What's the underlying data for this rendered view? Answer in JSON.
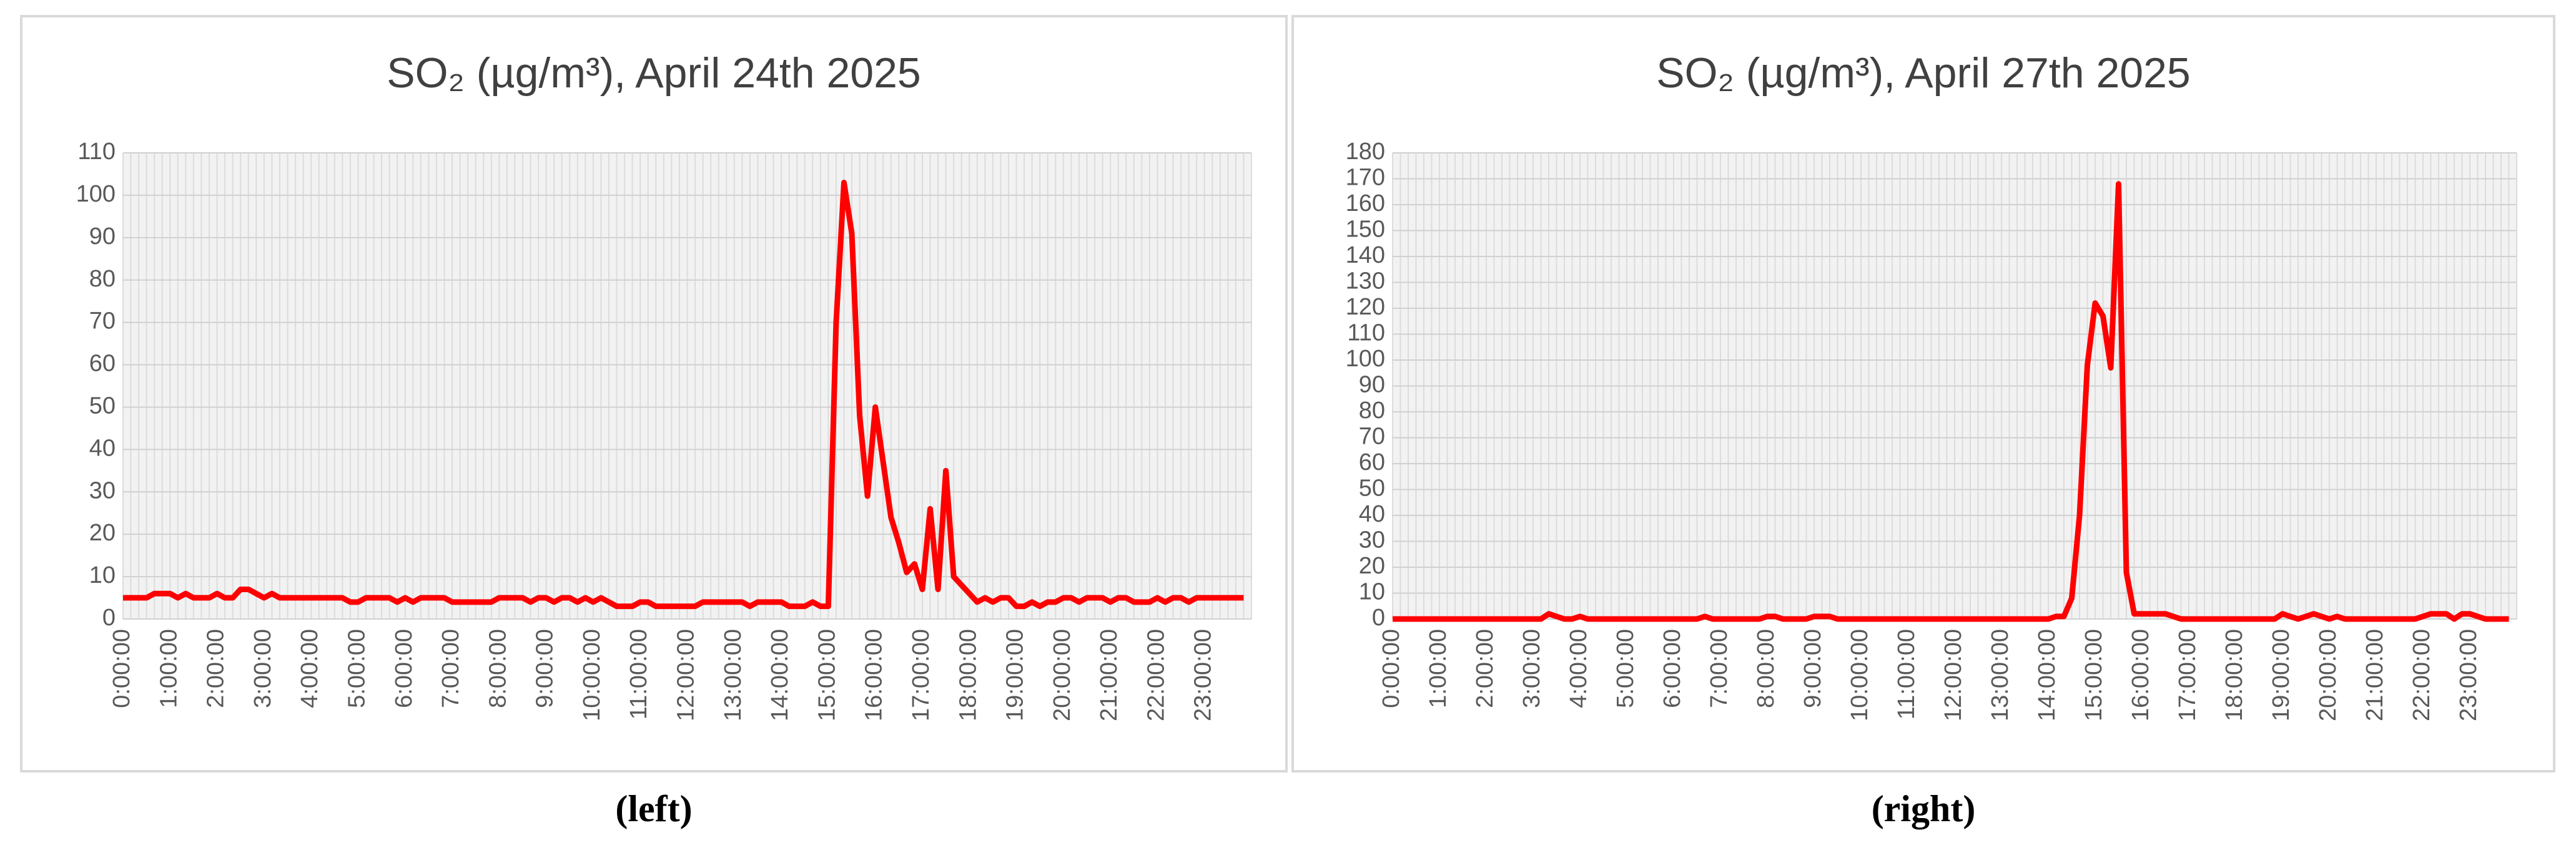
{
  "chart_data": [
    {
      "type": "line",
      "title": "SO₂ (µg/m³), April 24th 2025",
      "caption": "(left)",
      "categories": [
        "0:00:00",
        null,
        null,
        null,
        null,
        null,
        "1:00:00",
        null,
        null,
        null,
        null,
        null,
        "2:00:00",
        null,
        null,
        null,
        null,
        null,
        "3:00:00",
        null,
        null,
        null,
        null,
        null,
        "4:00:00",
        null,
        null,
        null,
        null,
        null,
        "5:00:00",
        null,
        null,
        null,
        null,
        null,
        "6:00:00",
        null,
        null,
        null,
        null,
        null,
        "7:00:00",
        null,
        null,
        null,
        null,
        null,
        "8:00:00",
        null,
        null,
        null,
        null,
        null,
        "9:00:00",
        null,
        null,
        null,
        null,
        null,
        "10:00:00",
        null,
        null,
        null,
        null,
        null,
        "11:00:00",
        null,
        null,
        null,
        null,
        null,
        "12:00:00",
        null,
        null,
        null,
        null,
        null,
        "13:00:00",
        null,
        null,
        null,
        null,
        null,
        "14:00:00",
        null,
        null,
        null,
        null,
        null,
        "15:00:00",
        null,
        null,
        null,
        null,
        null,
        "16:00:00",
        null,
        null,
        null,
        null,
        null,
        "17:00:00",
        null,
        null,
        null,
        null,
        null,
        "18:00:00",
        null,
        null,
        null,
        null,
        null,
        "19:00:00",
        null,
        null,
        null,
        null,
        null,
        "20:00:00",
        null,
        null,
        null,
        null,
        null,
        "21:00:00",
        null,
        null,
        null,
        null,
        null,
        "22:00:00",
        null,
        null,
        null,
        null,
        null,
        "23:00:00",
        null,
        null,
        null,
        null,
        null
      ],
      "values": [
        5,
        5,
        5,
        5,
        6,
        6,
        6,
        5,
        6,
        5,
        5,
        5,
        6,
        5,
        5,
        7,
        7,
        6,
        5,
        6,
        5,
        5,
        5,
        5,
        5,
        5,
        5,
        5,
        5,
        4,
        4,
        5,
        5,
        5,
        5,
        4,
        5,
        4,
        5,
        5,
        5,
        5,
        4,
        4,
        4,
        4,
        4,
        4,
        5,
        5,
        5,
        5,
        4,
        5,
        5,
        4,
        5,
        5,
        4,
        5,
        4,
        5,
        4,
        3,
        3,
        3,
        4,
        4,
        3,
        3,
        3,
        3,
        3,
        3,
        4,
        4,
        4,
        4,
        4,
        4,
        3,
        4,
        4,
        4,
        4,
        3,
        3,
        3,
        4,
        3,
        3,
        70,
        103,
        91,
        48,
        29,
        50,
        37,
        24,
        18,
        11,
        13,
        7,
        26,
        7,
        35,
        10,
        8,
        6,
        4,
        5,
        4,
        5,
        5,
        3,
        3,
        4,
        3,
        4,
        4,
        5,
        5,
        4,
        5,
        5,
        5,
        4,
        5,
        5,
        4,
        4,
        4,
        5,
        4,
        5,
        5,
        4,
        5,
        5,
        5,
        5,
        5,
        5,
        5
      ],
      "color": "#ff0000",
      "ylim": [
        0,
        110
      ],
      "yticks": [
        0,
        10,
        20,
        30,
        40,
        50,
        60,
        70,
        80,
        90,
        100,
        110
      ],
      "grid": true
    },
    {
      "type": "line",
      "title": "SO₂ (µg/m³), April 27th 2025",
      "caption": "(right)",
      "categories": [
        "0:00:00",
        null,
        null,
        null,
        null,
        null,
        "1:00:00",
        null,
        null,
        null,
        null,
        null,
        "2:00:00",
        null,
        null,
        null,
        null,
        null,
        "3:00:00",
        null,
        null,
        null,
        null,
        null,
        "4:00:00",
        null,
        null,
        null,
        null,
        null,
        "5:00:00",
        null,
        null,
        null,
        null,
        null,
        "6:00:00",
        null,
        null,
        null,
        null,
        null,
        "7:00:00",
        null,
        null,
        null,
        null,
        null,
        "8:00:00",
        null,
        null,
        null,
        null,
        null,
        "9:00:00",
        null,
        null,
        null,
        null,
        null,
        "10:00:00",
        null,
        null,
        null,
        null,
        null,
        "11:00:00",
        null,
        null,
        null,
        null,
        null,
        "12:00:00",
        null,
        null,
        null,
        null,
        null,
        "13:00:00",
        null,
        null,
        null,
        null,
        null,
        "14:00:00",
        null,
        null,
        null,
        null,
        null,
        "15:00:00",
        null,
        null,
        null,
        null,
        null,
        "16:00:00",
        null,
        null,
        null,
        null,
        null,
        "17:00:00",
        null,
        null,
        null,
        null,
        null,
        "18:00:00",
        null,
        null,
        null,
        null,
        null,
        "19:00:00",
        null,
        null,
        null,
        null,
        null,
        "20:00:00",
        null,
        null,
        null,
        null,
        null,
        "21:00:00",
        null,
        null,
        null,
        null,
        null,
        "22:00:00",
        null,
        null,
        null,
        null,
        null,
        "23:00:00",
        null,
        null,
        null,
        null,
        null
      ],
      "values": [
        0,
        0,
        0,
        0,
        0,
        0,
        0,
        0,
        0,
        0,
        0,
        0,
        0,
        0,
        0,
        0,
        0,
        0,
        0,
        0,
        2,
        1,
        0,
        0,
        1,
        0,
        0,
        0,
        0,
        0,
        0,
        0,
        0,
        0,
        0,
        0,
        0,
        0,
        0,
        0,
        1,
        0,
        0,
        0,
        0,
        0,
        0,
        0,
        1,
        1,
        0,
        0,
        0,
        0,
        1,
        1,
        1,
        0,
        0,
        0,
        0,
        0,
        0,
        0,
        0,
        0,
        0,
        0,
        0,
        0,
        0,
        0,
        0,
        0,
        0,
        0,
        0,
        0,
        0,
        0,
        0,
        0,
        0,
        0,
        0,
        1,
        1,
        8,
        40,
        98,
        122,
        117,
        97,
        168,
        18,
        2,
        2,
        2,
        2,
        2,
        1,
        0,
        0,
        0,
        0,
        0,
        0,
        0,
        0,
        0,
        0,
        0,
        0,
        0,
        2,
        1,
        0,
        1,
        2,
        1,
        0,
        1,
        0,
        0,
        0,
        0,
        0,
        0,
        0,
        0,
        0,
        0,
        1,
        2,
        2,
        2,
        0,
        2,
        2,
        1,
        0,
        0,
        0,
        0
      ],
      "color": "#ff0000",
      "ylim": [
        0,
        180
      ],
      "yticks": [
        0,
        10,
        20,
        30,
        40,
        50,
        60,
        70,
        80,
        90,
        100,
        110,
        120,
        130,
        140,
        150,
        160,
        170,
        180
      ],
      "grid": true
    }
  ]
}
